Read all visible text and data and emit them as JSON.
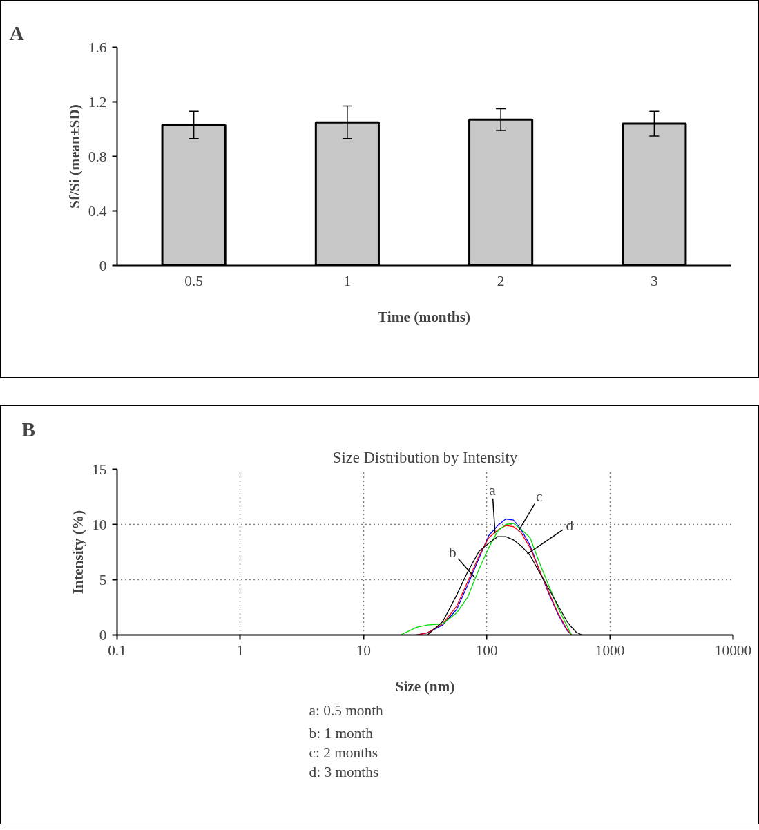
{
  "chart_data": [
    {
      "type": "bar",
      "categories": [
        "0.5",
        "1",
        "2",
        "3"
      ],
      "values": [
        1.03,
        1.05,
        1.07,
        1.04
      ],
      "errors": [
        0.1,
        0.12,
        0.08,
        0.09
      ],
      "color": "#c8c8c8",
      "xlabel": "Time (months)",
      "ylabel": "Sf/Si (mean±SD)",
      "ylim": [
        0,
        1.6
      ],
      "yticks": [
        0,
        0.4,
        0.8,
        1.2,
        1.6
      ],
      "grid": false,
      "annotations": [
        "A"
      ]
    },
    {
      "type": "line",
      "title": "Size Distribution by Intensity",
      "xlabel": "Size (nm)",
      "ylabel": "Intensity (%)",
      "log": "x",
      "xlim": [
        0.1,
        10000
      ],
      "xticks": [
        0.1,
        1,
        10,
        100,
        1000,
        10000
      ],
      "ylim": [
        0,
        15
      ],
      "yticks": [
        0,
        5,
        10,
        15
      ],
      "grid": true,
      "line_style": "solid",
      "marker": "none",
      "x": [
        20,
        27,
        33,
        44,
        57,
        70,
        87,
        104,
        123,
        143,
        165,
        189,
        225,
        267,
        318,
        378,
        449,
        489,
        533,
        593
      ],
      "series": [
        {
          "color": "#0000ff",
          "values": [
            null,
            0,
            0.2,
            0.9,
            2.3,
            4.5,
            7.0,
            9.0,
            9.9,
            10.5,
            10.4,
            9.6,
            8.1,
            5.9,
            3.8,
            1.9,
            0.4,
            0,
            null,
            null
          ]
        },
        {
          "color": "#ff0000",
          "values": [
            null,
            0,
            0.2,
            1.0,
            2.6,
            4.8,
            7.2,
            8.8,
            9.5,
            9.9,
            9.8,
            9.3,
            7.9,
            5.9,
            3.9,
            2.0,
            0.5,
            0,
            null,
            null
          ]
        },
        {
          "color": "#00dd00",
          "values": [
            0,
            0.7,
            0.9,
            1.0,
            2.0,
            3.4,
            6.0,
            7.9,
            9.4,
            10.0,
            10.1,
            9.6,
            8.8,
            6.6,
            4.5,
            2.5,
            0.8,
            0,
            null,
            null
          ]
        },
        {
          "color": "#000000",
          "values": [
            null,
            null,
            0,
            1.2,
            3.6,
            5.7,
            7.6,
            8.3,
            8.9,
            8.9,
            8.6,
            8.1,
            7.2,
            5.7,
            4.2,
            2.7,
            1.2,
            0.7,
            0.25,
            0
          ]
        }
      ],
      "annotations": [
        "B",
        {
          "text": "a",
          "x": 117,
          "y": 9.2
        },
        {
          "text": "b",
          "x": 80,
          "y": 5.2
        },
        {
          "text": "c",
          "x": 181,
          "y": 9.4
        },
        {
          "text": "d",
          "x": 212,
          "y": 7.3
        },
        "a: 0.5 month",
        "b: 1 month",
        "c: 2 months",
        "d: 3 months"
      ]
    }
  ]
}
